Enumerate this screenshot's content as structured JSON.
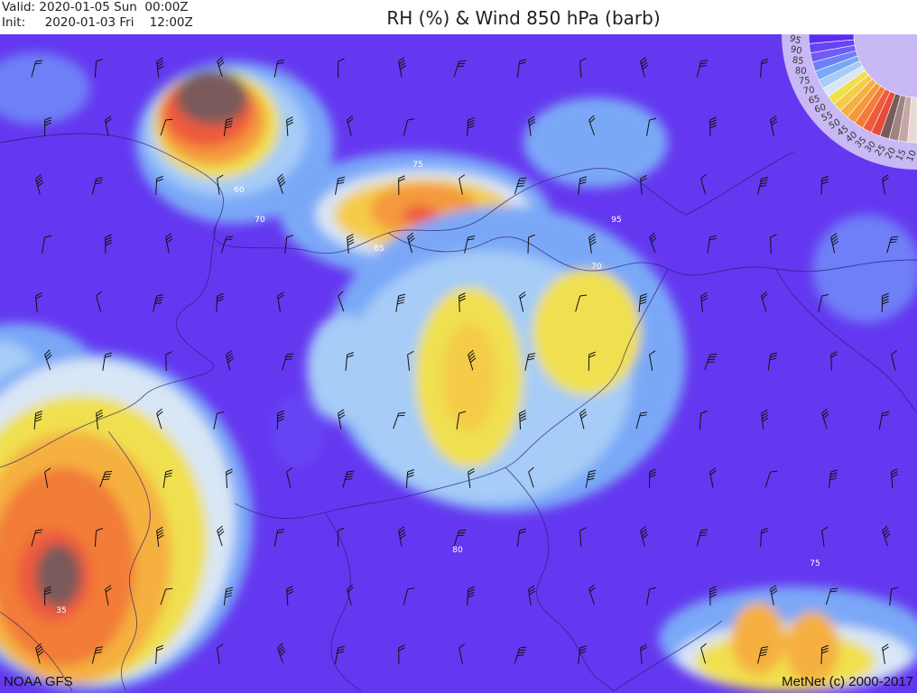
{
  "header": {
    "valid_label": "Valid:",
    "valid_value": "2020-01-05 Sun  00:00Z",
    "init_label": "Init:",
    "init_value": "2020-01-03 Fri    12:00Z",
    "title": "RH (%) & Wind 850 hPa (barb)"
  },
  "legend": {
    "levels": [
      "95",
      "90",
      "85",
      "80",
      "75",
      "70",
      "65",
      "60",
      "55",
      "50",
      "45",
      "40",
      "35",
      "30",
      "25",
      "20",
      "15",
      "10"
    ],
    "colors": [
      "#5a2cf2",
      "#6644f4",
      "#6f5cf6",
      "#6e7ff7",
      "#7aa8f7",
      "#a6ccf7",
      "#d8e6f6",
      "#f0e050",
      "#f4cc48",
      "#f5b040",
      "#f49a3c",
      "#f27c38",
      "#ee5a3c",
      "#e84a3c",
      "#7a5a5a",
      "#a08484",
      "#c4a8a4",
      "#e8d8d4"
    ]
  },
  "contour_labels": [
    "60",
    "70",
    "75",
    "85",
    "95",
    "70",
    "80",
    "75",
    "35"
  ],
  "footer": {
    "source": "NOAA GFS",
    "credit": "MetNet (c) 2000-2017"
  },
  "colors": {
    "background_rh": "#6438f0",
    "barb": "#111111"
  }
}
